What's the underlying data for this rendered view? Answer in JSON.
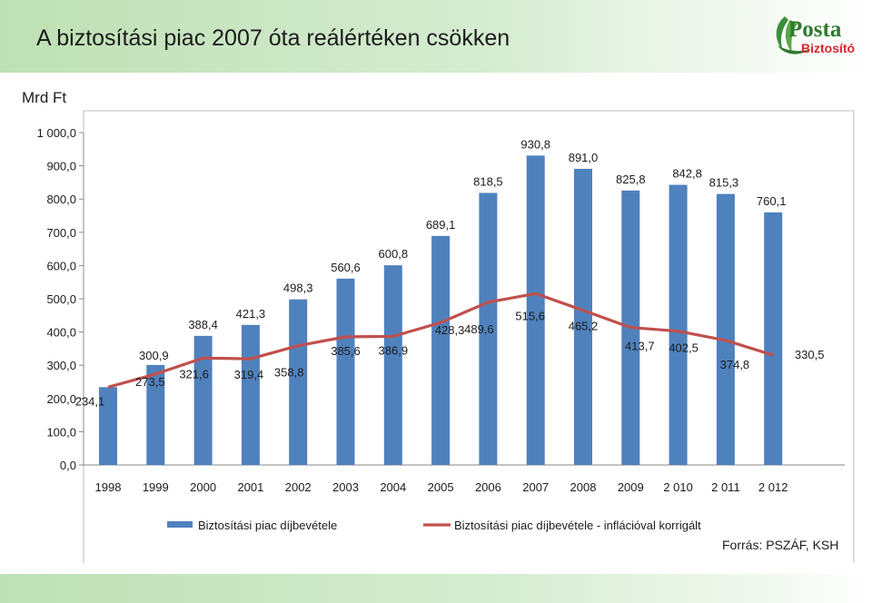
{
  "header": {
    "title": "A biztosítási piac 2007 óta reálértéken csökken"
  },
  "logo": {
    "line1": "Posta",
    "line2": "Biztosító"
  },
  "chart_data": {
    "type": "bar",
    "ylabel": "Mrd  Ft",
    "ylim": [
      0,
      1000
    ],
    "yticks": [
      0,
      100,
      200,
      300,
      400,
      500,
      600,
      700,
      800,
      900,
      1000
    ],
    "ytick_labels": [
      "0,0",
      "100,0",
      "200,0",
      "300,0",
      "400,0",
      "500,0",
      "600,0",
      "700,0",
      "800,0",
      "900,0",
      "1 000,0"
    ],
    "categories": [
      "1998",
      "1999",
      "2000",
      "2001",
      "2002",
      "2003",
      "2004",
      "2005",
      "2006",
      "2007",
      "2008",
      "2009",
      "2 010",
      "2 011",
      "2 012"
    ],
    "series": [
      {
        "name": "Biztosítási piac díjbevétele",
        "type": "bar",
        "color": "#4f81bd",
        "values": [
          234.1,
          300.9,
          388.4,
          421.3,
          498.3,
          560.6,
          600.8,
          689.1,
          818.5,
          930.8,
          891.0,
          825.8,
          842.8,
          815.3,
          760.1
        ],
        "labels": [
          "234,1",
          "300,9",
          "388,4",
          "421,3",
          "498,3",
          "560,6",
          "600,8",
          "689,1",
          "818,5",
          "930,8",
          "891,0",
          "825,8",
          "842,8",
          "815,3",
          "760,1"
        ]
      },
      {
        "name": "Biztosítási piac díjbevétele - inflációval korrigált",
        "type": "line",
        "color": "#c0504d",
        "values": [
          234.1,
          273.5,
          321.6,
          319.4,
          358.8,
          385.6,
          386.9,
          428.3,
          489.6,
          515.6,
          465.2,
          413.7,
          402.5,
          374.8,
          330.5
        ],
        "labels": [
          "234,1",
          "273,5",
          "321,6",
          "319,4",
          "358,8",
          "385,6",
          "386,9",
          "428,3",
          "489,6",
          "515,6",
          "465,2",
          "413,7",
          "402,5",
          "374,8",
          "330,5"
        ]
      }
    ],
    "grid": false,
    "legend": "bottom"
  },
  "source": "Forrás: PSZÁF, KSH"
}
